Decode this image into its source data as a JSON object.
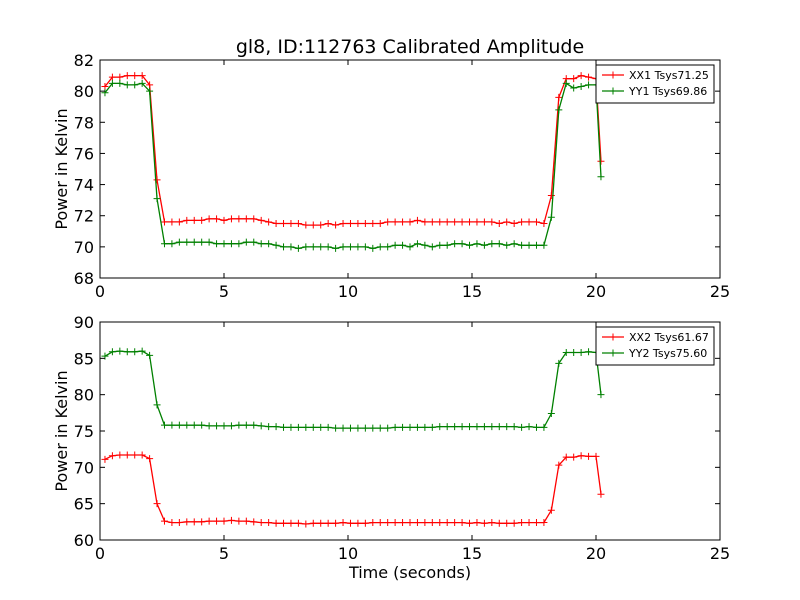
{
  "figure_title": "gl8, ID:112763 Calibrated Amplitude",
  "colors": {
    "red": "#ff0000",
    "green": "#008000"
  },
  "chart_data": [
    {
      "type": "line",
      "xlabel": "",
      "ylabel": "Power in Kelvin",
      "xlim": [
        0,
        25
      ],
      "ylim": [
        68,
        82
      ],
      "xticks": [
        0,
        5,
        10,
        15,
        20,
        25
      ],
      "yticks": [
        68,
        70,
        72,
        74,
        76,
        78,
        80,
        82
      ],
      "grid": false,
      "legend_position": "top-right",
      "marker": "plus",
      "series": [
        {
          "name": "XX1 Tsys71.25",
          "color": "#ff0000",
          "x": [
            0.2,
            0.5,
            0.8,
            1.1,
            1.4,
            1.7,
            2.0,
            2.3,
            2.6,
            2.9,
            3.2,
            3.5,
            3.8,
            4.1,
            4.4,
            4.7,
            5.0,
            5.3,
            5.6,
            5.9,
            6.2,
            6.5,
            6.8,
            7.1,
            7.4,
            7.7,
            8.0,
            8.3,
            8.6,
            8.9,
            9.2,
            9.5,
            9.8,
            10.1,
            10.4,
            10.7,
            11.0,
            11.3,
            11.6,
            11.9,
            12.2,
            12.5,
            12.8,
            13.1,
            13.4,
            13.7,
            14.0,
            14.3,
            14.6,
            14.9,
            15.2,
            15.5,
            15.8,
            16.1,
            16.4,
            16.7,
            17.0,
            17.3,
            17.6,
            17.9,
            18.2,
            18.5,
            18.8,
            19.1,
            19.4,
            19.7,
            20.0,
            20.2
          ],
          "y": [
            80.3,
            80.9,
            80.9,
            81.0,
            81.0,
            81.0,
            80.4,
            74.3,
            71.6,
            71.6,
            71.6,
            71.7,
            71.7,
            71.7,
            71.8,
            71.8,
            71.7,
            71.8,
            71.8,
            71.8,
            71.8,
            71.7,
            71.6,
            71.5,
            71.5,
            71.5,
            71.5,
            71.4,
            71.4,
            71.4,
            71.5,
            71.4,
            71.5,
            71.5,
            71.5,
            71.5,
            71.5,
            71.5,
            71.6,
            71.6,
            71.6,
            71.6,
            71.7,
            71.6,
            71.6,
            71.6,
            71.6,
            71.6,
            71.6,
            71.6,
            71.6,
            71.6,
            71.6,
            71.5,
            71.6,
            71.5,
            71.6,
            71.6,
            71.6,
            71.5,
            73.3,
            79.6,
            80.8,
            80.8,
            81.0,
            80.9,
            80.8,
            75.5
          ]
        },
        {
          "name": "YY1 Tsys69.86",
          "color": "#008000",
          "x": [
            0.2,
            0.5,
            0.8,
            1.1,
            1.4,
            1.7,
            2.0,
            2.3,
            2.6,
            2.9,
            3.2,
            3.5,
            3.8,
            4.1,
            4.4,
            4.7,
            5.0,
            5.3,
            5.6,
            5.9,
            6.2,
            6.5,
            6.8,
            7.1,
            7.4,
            7.7,
            8.0,
            8.3,
            8.6,
            8.9,
            9.2,
            9.5,
            9.8,
            10.1,
            10.4,
            10.7,
            11.0,
            11.3,
            11.6,
            11.9,
            12.2,
            12.5,
            12.8,
            13.1,
            13.4,
            13.7,
            14.0,
            14.3,
            14.6,
            14.9,
            15.2,
            15.5,
            15.8,
            16.1,
            16.4,
            16.7,
            17.0,
            17.3,
            17.6,
            17.9,
            18.2,
            18.5,
            18.8,
            19.1,
            19.4,
            19.7,
            20.0,
            20.2
          ],
          "y": [
            79.9,
            80.5,
            80.5,
            80.4,
            80.4,
            80.5,
            80.0,
            73.1,
            70.2,
            70.2,
            70.3,
            70.3,
            70.3,
            70.3,
            70.3,
            70.2,
            70.2,
            70.2,
            70.2,
            70.3,
            70.3,
            70.2,
            70.2,
            70.1,
            70.0,
            70.0,
            69.9,
            70.0,
            70.0,
            70.0,
            70.0,
            69.9,
            70.0,
            70.0,
            70.0,
            70.0,
            69.9,
            70.0,
            70.0,
            70.1,
            70.1,
            70.0,
            70.2,
            70.1,
            70.0,
            70.1,
            70.1,
            70.2,
            70.2,
            70.1,
            70.2,
            70.1,
            70.2,
            70.2,
            70.1,
            70.2,
            70.1,
            70.1,
            70.1,
            70.1,
            71.9,
            78.8,
            80.5,
            80.2,
            80.3,
            80.4,
            80.4,
            74.5
          ]
        }
      ]
    },
    {
      "type": "line",
      "xlabel": "Time (seconds)",
      "ylabel": "Power in Kelvin",
      "xlim": [
        0,
        25
      ],
      "ylim": [
        60,
        90
      ],
      "xticks": [
        0,
        5,
        10,
        15,
        20,
        25
      ],
      "yticks": [
        60,
        65,
        70,
        75,
        80,
        85,
        90
      ],
      "grid": false,
      "legend_position": "top-right",
      "marker": "plus",
      "series": [
        {
          "name": "XX2 Tsys61.67",
          "color": "#ff0000",
          "x": [
            0.2,
            0.5,
            0.8,
            1.1,
            1.4,
            1.7,
            2.0,
            2.3,
            2.6,
            2.9,
            3.2,
            3.5,
            3.8,
            4.1,
            4.4,
            4.7,
            5.0,
            5.3,
            5.6,
            5.9,
            6.2,
            6.5,
            6.8,
            7.1,
            7.4,
            7.7,
            8.0,
            8.3,
            8.6,
            8.9,
            9.2,
            9.5,
            9.8,
            10.1,
            10.4,
            10.7,
            11.0,
            11.3,
            11.6,
            11.9,
            12.2,
            12.5,
            12.8,
            13.1,
            13.4,
            13.7,
            14.0,
            14.3,
            14.6,
            14.9,
            15.2,
            15.5,
            15.8,
            16.1,
            16.4,
            16.7,
            17.0,
            17.3,
            17.6,
            17.9,
            18.2,
            18.5,
            18.8,
            19.1,
            19.4,
            19.7,
            20.0,
            20.2
          ],
          "y": [
            71.1,
            71.6,
            71.7,
            71.7,
            71.7,
            71.7,
            71.2,
            65.0,
            62.6,
            62.4,
            62.4,
            62.5,
            62.5,
            62.5,
            62.6,
            62.6,
            62.6,
            62.7,
            62.6,
            62.6,
            62.5,
            62.4,
            62.4,
            62.3,
            62.3,
            62.3,
            62.3,
            62.2,
            62.3,
            62.3,
            62.3,
            62.3,
            62.4,
            62.3,
            62.3,
            62.3,
            62.4,
            62.4,
            62.4,
            62.4,
            62.4,
            62.4,
            62.4,
            62.4,
            62.4,
            62.4,
            62.4,
            62.4,
            62.4,
            62.3,
            62.4,
            62.3,
            62.4,
            62.3,
            62.3,
            62.3,
            62.4,
            62.4,
            62.4,
            62.4,
            64.1,
            70.3,
            71.4,
            71.4,
            71.6,
            71.5,
            71.5,
            66.3
          ]
        },
        {
          "name": "YY2 Tsys75.60",
          "color": "#008000",
          "x": [
            0.2,
            0.5,
            0.8,
            1.1,
            1.4,
            1.7,
            2.0,
            2.3,
            2.6,
            2.9,
            3.2,
            3.5,
            3.8,
            4.1,
            4.4,
            4.7,
            5.0,
            5.3,
            5.6,
            5.9,
            6.2,
            6.5,
            6.8,
            7.1,
            7.4,
            7.7,
            8.0,
            8.3,
            8.6,
            8.9,
            9.2,
            9.5,
            9.8,
            10.1,
            10.4,
            10.7,
            11.0,
            11.3,
            11.6,
            11.9,
            12.2,
            12.5,
            12.8,
            13.1,
            13.4,
            13.7,
            14.0,
            14.3,
            14.6,
            14.9,
            15.2,
            15.5,
            15.8,
            16.1,
            16.4,
            16.7,
            17.0,
            17.3,
            17.6,
            17.9,
            18.2,
            18.5,
            18.8,
            19.1,
            19.4,
            19.7,
            20.0,
            20.2
          ],
          "y": [
            85.3,
            85.9,
            86.0,
            85.9,
            85.9,
            86.0,
            85.4,
            78.6,
            75.8,
            75.8,
            75.8,
            75.8,
            75.8,
            75.8,
            75.7,
            75.7,
            75.7,
            75.7,
            75.8,
            75.8,
            75.8,
            75.7,
            75.6,
            75.6,
            75.5,
            75.5,
            75.5,
            75.5,
            75.5,
            75.5,
            75.5,
            75.4,
            75.4,
            75.4,
            75.4,
            75.4,
            75.4,
            75.4,
            75.4,
            75.5,
            75.5,
            75.5,
            75.5,
            75.5,
            75.5,
            75.6,
            75.6,
            75.6,
            75.6,
            75.6,
            75.6,
            75.6,
            75.6,
            75.6,
            75.6,
            75.6,
            75.5,
            75.6,
            75.5,
            75.5,
            77.4,
            84.3,
            85.8,
            85.8,
            85.8,
            85.9,
            85.8,
            80.0
          ]
        }
      ]
    }
  ]
}
